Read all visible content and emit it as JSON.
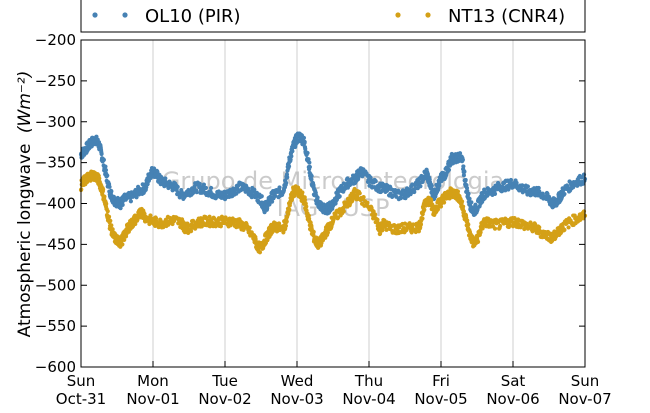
{
  "chart_data": {
    "type": "scatter",
    "title": "",
    "ylabel": "Atmospheric longwave",
    "ylabel_unit": "(Wm⁻²)",
    "ylim": [
      -600,
      -200
    ],
    "yticks": [
      -600,
      -550,
      -500,
      -450,
      -400,
      -350,
      -300,
      -250,
      -200
    ],
    "ytick_labels": [
      "−600",
      "−550",
      "−500",
      "−450",
      "−400",
      "−350",
      "−300",
      "−250",
      "−200"
    ],
    "xlim_days": [
      0,
      7
    ],
    "x_ticks": [
      {
        "day": "Sun",
        "date": "Oct-31"
      },
      {
        "day": "Mon",
        "date": "Nov-01"
      },
      {
        "day": "Tue",
        "date": "Nov-02"
      },
      {
        "day": "Wed",
        "date": "Nov-03"
      },
      {
        "day": "Thu",
        "date": "Nov-04"
      },
      {
        "day": "Fri",
        "date": "Nov-05"
      },
      {
        "day": "Sat",
        "date": "Nov-06"
      },
      {
        "day": "Sun",
        "date": "Nov-07"
      }
    ],
    "grid": "vertical",
    "legend_position": "top",
    "watermark": [
      "Grupo de Micrometeorologia",
      "IAG - USP"
    ],
    "series": [
      {
        "name": "OL10 (PIR)",
        "color": "#4682b4",
        "marker": "dot",
        "points": [
          [
            0.0,
            -340
          ],
          [
            0.05,
            -335
          ],
          [
            0.1,
            -330
          ],
          [
            0.15,
            -325
          ],
          [
            0.2,
            -322
          ],
          [
            0.25,
            -328
          ],
          [
            0.3,
            -345
          ],
          [
            0.35,
            -365
          ],
          [
            0.4,
            -385
          ],
          [
            0.45,
            -395
          ],
          [
            0.5,
            -398
          ],
          [
            0.55,
            -400
          ],
          [
            0.6,
            -395
          ],
          [
            0.7,
            -392
          ],
          [
            0.8,
            -385
          ],
          [
            0.9,
            -380
          ],
          [
            0.95,
            -365
          ],
          [
            1.0,
            -360
          ],
          [
            1.05,
            -365
          ],
          [
            1.1,
            -372
          ],
          [
            1.2,
            -376
          ],
          [
            1.3,
            -380
          ],
          [
            1.4,
            -390
          ],
          [
            1.5,
            -385
          ],
          [
            1.6,
            -380
          ],
          [
            1.7,
            -382
          ],
          [
            1.8,
            -386
          ],
          [
            1.9,
            -390
          ],
          [
            2.0,
            -390
          ],
          [
            2.1,
            -385
          ],
          [
            2.2,
            -380
          ],
          [
            2.3,
            -382
          ],
          [
            2.4,
            -388
          ],
          [
            2.5,
            -395
          ],
          [
            2.55,
            -405
          ],
          [
            2.6,
            -400
          ],
          [
            2.65,
            -392
          ],
          [
            2.7,
            -388
          ],
          [
            2.8,
            -385
          ],
          [
            2.85,
            -370
          ],
          [
            2.9,
            -345
          ],
          [
            2.95,
            -330
          ],
          [
            3.0,
            -320
          ],
          [
            3.05,
            -318
          ],
          [
            3.1,
            -325
          ],
          [
            3.15,
            -345
          ],
          [
            3.2,
            -370
          ],
          [
            3.25,
            -390
          ],
          [
            3.3,
            -400
          ],
          [
            3.35,
            -405
          ],
          [
            3.4,
            -408
          ],
          [
            3.45,
            -405
          ],
          [
            3.5,
            -400
          ],
          [
            3.55,
            -392
          ],
          [
            3.6,
            -385
          ],
          [
            3.7,
            -375
          ],
          [
            3.8,
            -370
          ],
          [
            3.85,
            -365
          ],
          [
            3.9,
            -360
          ],
          [
            4.0,
            -372
          ],
          [
            4.1,
            -378
          ],
          [
            4.2,
            -382
          ],
          [
            4.3,
            -385
          ],
          [
            4.4,
            -390
          ],
          [
            4.5,
            -388
          ],
          [
            4.6,
            -382
          ],
          [
            4.7,
            -375
          ],
          [
            4.8,
            -362
          ],
          [
            4.85,
            -378
          ],
          [
            4.9,
            -390
          ],
          [
            4.95,
            -380
          ],
          [
            5.0,
            -370
          ],
          [
            5.05,
            -365
          ],
          [
            5.1,
            -355
          ],
          [
            5.15,
            -345
          ],
          [
            5.2,
            -345
          ],
          [
            5.25,
            -342
          ],
          [
            5.3,
            -350
          ],
          [
            5.35,
            -380
          ],
          [
            5.4,
            -400
          ],
          [
            5.45,
            -410
          ],
          [
            5.5,
            -405
          ],
          [
            5.55,
            -395
          ],
          [
            5.6,
            -388
          ],
          [
            5.7,
            -385
          ],
          [
            5.8,
            -380
          ],
          [
            5.9,
            -378
          ],
          [
            6.0,
            -375
          ],
          [
            6.1,
            -380
          ],
          [
            6.2,
            -385
          ],
          [
            6.3,
            -385
          ],
          [
            6.4,
            -388
          ],
          [
            6.5,
            -395
          ],
          [
            6.55,
            -400
          ],
          [
            6.6,
            -398
          ],
          [
            6.65,
            -392
          ],
          [
            6.7,
            -385
          ],
          [
            6.8,
            -378
          ],
          [
            6.9,
            -372
          ],
          [
            7.0,
            -370
          ]
        ]
      },
      {
        "name": "NT13 (CNR4)",
        "color": "#d4a017",
        "marker": "dot",
        "points": [
          [
            0.0,
            -378
          ],
          [
            0.05,
            -372
          ],
          [
            0.1,
            -368
          ],
          [
            0.15,
            -365
          ],
          [
            0.2,
            -366
          ],
          [
            0.25,
            -372
          ],
          [
            0.3,
            -385
          ],
          [
            0.35,
            -405
          ],
          [
            0.4,
            -425
          ],
          [
            0.45,
            -440
          ],
          [
            0.5,
            -445
          ],
          [
            0.55,
            -448
          ],
          [
            0.6,
            -440
          ],
          [
            0.65,
            -430
          ],
          [
            0.7,
            -425
          ],
          [
            0.75,
            -420
          ],
          [
            0.8,
            -415
          ],
          [
            0.85,
            -410
          ],
          [
            0.9,
            -418
          ],
          [
            1.0,
            -422
          ],
          [
            1.1,
            -424
          ],
          [
            1.2,
            -422
          ],
          [
            1.3,
            -420
          ],
          [
            1.4,
            -424
          ],
          [
            1.45,
            -430
          ],
          [
            1.5,
            -430
          ],
          [
            1.6,
            -424
          ],
          [
            1.7,
            -422
          ],
          [
            1.8,
            -422
          ],
          [
            1.9,
            -422
          ],
          [
            2.0,
            -422
          ],
          [
            2.1,
            -422
          ],
          [
            2.2,
            -425
          ],
          [
            2.3,
            -430
          ],
          [
            2.4,
            -442
          ],
          [
            2.45,
            -452
          ],
          [
            2.5,
            -455
          ],
          [
            2.55,
            -445
          ],
          [
            2.6,
            -438
          ],
          [
            2.65,
            -430
          ],
          [
            2.7,
            -428
          ],
          [
            2.8,
            -432
          ],
          [
            2.85,
            -422
          ],
          [
            2.9,
            -400
          ],
          [
            2.95,
            -385
          ],
          [
            3.0,
            -385
          ],
          [
            3.05,
            -390
          ],
          [
            3.1,
            -395
          ],
          [
            3.15,
            -415
          ],
          [
            3.2,
            -432
          ],
          [
            3.25,
            -445
          ],
          [
            3.3,
            -450
          ],
          [
            3.35,
            -444
          ],
          [
            3.4,
            -435
          ],
          [
            3.45,
            -428
          ],
          [
            3.5,
            -420
          ],
          [
            3.6,
            -410
          ],
          [
            3.7,
            -400
          ],
          [
            3.75,
            -395
          ],
          [
            3.8,
            -388
          ],
          [
            3.85,
            -390
          ],
          [
            4.0,
            -405
          ],
          [
            4.1,
            -420
          ],
          [
            4.15,
            -432
          ],
          [
            4.2,
            -425
          ],
          [
            4.3,
            -430
          ],
          [
            4.4,
            -432
          ],
          [
            4.5,
            -430
          ],
          [
            4.6,
            -430
          ],
          [
            4.7,
            -428
          ],
          [
            4.75,
            -410
          ],
          [
            4.8,
            -395
          ],
          [
            4.85,
            -398
          ],
          [
            4.9,
            -410
          ],
          [
            4.95,
            -402
          ],
          [
            5.0,
            -398
          ],
          [
            5.05,
            -392
          ],
          [
            5.1,
            -390
          ],
          [
            5.15,
            -386
          ],
          [
            5.2,
            -388
          ],
          [
            5.25,
            -392
          ],
          [
            5.3,
            -405
          ],
          [
            5.35,
            -420
          ],
          [
            5.4,
            -438
          ],
          [
            5.45,
            -448
          ],
          [
            5.5,
            -445
          ],
          [
            5.55,
            -432
          ],
          [
            5.6,
            -422
          ],
          [
            5.7,
            -425
          ],
          [
            5.8,
            -426
          ],
          [
            5.9,
            -424
          ],
          [
            6.0,
            -422
          ],
          [
            6.1,
            -424
          ],
          [
            6.2,
            -428
          ],
          [
            6.3,
            -430
          ],
          [
            6.4,
            -436
          ],
          [
            6.5,
            -440
          ],
          [
            6.55,
            -442
          ],
          [
            6.6,
            -438
          ],
          [
            6.65,
            -432
          ],
          [
            6.7,
            -428
          ],
          [
            6.8,
            -422
          ],
          [
            6.9,
            -418
          ],
          [
            7.0,
            -415
          ]
        ]
      }
    ]
  }
}
